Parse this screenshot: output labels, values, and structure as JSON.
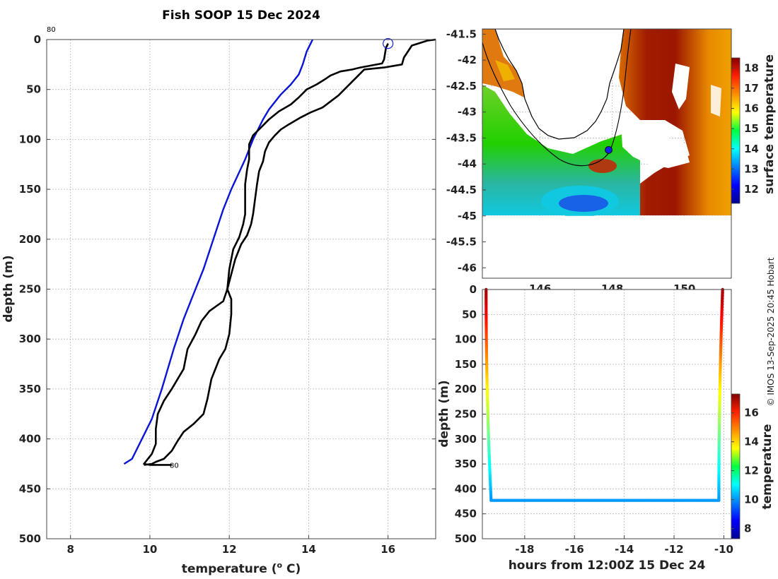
{
  "title": "Fish SOOP 15 Dec 2024",
  "credit": "© IMOS 13-Sep-2025 20:45 Hobart",
  "chart_data": [
    {
      "type": "line",
      "name": "profile",
      "xlabel_prefix": "temperature (",
      "xlabel_sup": "o",
      "xlabel_suffix": " C)",
      "ylabel": "depth (m)",
      "xlim": [
        7.4,
        17.2
      ],
      "ylim": [
        500,
        0
      ],
      "xticks": [
        8,
        10,
        12,
        14,
        16
      ],
      "yticks": [
        0,
        50,
        100,
        150,
        200,
        250,
        300,
        350,
        400,
        450,
        500
      ],
      "label_top": "80",
      "label_bottom": "80",
      "label_bottom_pos": [
        10.5,
        426
      ],
      "marker_circle": [
        16.0,
        4
      ],
      "series": [
        {
          "name": "climatology",
          "color": "#0a14d6",
          "points": [
            [
              14.1,
              0
            ],
            [
              14.0,
              8
            ],
            [
              13.95,
              12
            ],
            [
              13.85,
              25
            ],
            [
              13.75,
              35
            ],
            [
              13.55,
              45
            ],
            [
              13.3,
              55
            ],
            [
              13.0,
              70
            ],
            [
              12.85,
              80
            ],
            [
              12.6,
              100
            ],
            [
              12.4,
              120
            ],
            [
              12.05,
              150
            ],
            [
              11.85,
              170
            ],
            [
              11.6,
              200
            ],
            [
              11.35,
              230
            ],
            [
              11.05,
              260
            ],
            [
              10.85,
              280
            ],
            [
              10.6,
              310
            ],
            [
              10.3,
              350
            ],
            [
              10.05,
              380
            ],
            [
              9.8,
              400
            ],
            [
              9.55,
              420
            ],
            [
              9.35,
              425
            ]
          ]
        },
        {
          "name": "profile-1",
          "color": "#000000",
          "points": [
            [
              16.0,
              4
            ],
            [
              15.95,
              8
            ],
            [
              15.9,
              20
            ],
            [
              15.85,
              24
            ],
            [
              15.3,
              28
            ],
            [
              15.1,
              30
            ],
            [
              14.8,
              32
            ],
            [
              14.55,
              36
            ],
            [
              14.4,
              40
            ],
            [
              14.2,
              45
            ],
            [
              13.95,
              50
            ],
            [
              13.75,
              58
            ],
            [
              13.55,
              65
            ],
            [
              13.25,
              72
            ],
            [
              13.0,
              80
            ],
            [
              12.8,
              88
            ],
            [
              12.6,
              96
            ],
            [
              12.5,
              105
            ],
            [
              12.5,
              120
            ],
            [
              12.45,
              130
            ],
            [
              12.4,
              145
            ],
            [
              12.4,
              160
            ],
            [
              12.4,
              175
            ],
            [
              12.35,
              185
            ],
            [
              12.25,
              198
            ],
            [
              12.1,
              210
            ],
            [
              12.0,
              230
            ],
            [
              11.95,
              250
            ],
            [
              11.85,
              262
            ],
            [
              11.5,
              272
            ],
            [
              11.3,
              282
            ],
            [
              11.15,
              295
            ],
            [
              10.95,
              310
            ],
            [
              10.85,
              330
            ],
            [
              10.55,
              350
            ],
            [
              10.35,
              362
            ],
            [
              10.2,
              375
            ],
            [
              10.15,
              390
            ],
            [
              10.15,
              405
            ],
            [
              10.05,
              415
            ],
            [
              9.95,
              420
            ],
            [
              9.85,
              425
            ],
            [
              10.0,
              426
            ],
            [
              10.3,
              426
            ],
            [
              10.55,
              426
            ]
          ]
        },
        {
          "name": "profile-2",
          "color": "#000000",
          "points": [
            [
              17.2,
              0
            ],
            [
              17.0,
              1
            ],
            [
              16.6,
              6
            ],
            [
              16.4,
              18
            ],
            [
              16.35,
              25
            ],
            [
              15.9,
              28
            ],
            [
              15.4,
              30
            ],
            [
              15.25,
              36
            ],
            [
              15.1,
              42
            ],
            [
              14.95,
              48
            ],
            [
              14.75,
              56
            ],
            [
              14.55,
              62
            ],
            [
              14.35,
              68
            ],
            [
              14.05,
              73
            ],
            [
              13.8,
              78
            ],
            [
              13.5,
              85
            ],
            [
              13.3,
              90
            ],
            [
              13.15,
              96
            ],
            [
              13.0,
              103
            ],
            [
              12.9,
              112
            ],
            [
              12.85,
              122
            ],
            [
              12.75,
              132
            ],
            [
              12.7,
              145
            ],
            [
              12.65,
              160
            ],
            [
              12.6,
              175
            ],
            [
              12.55,
              185
            ],
            [
              12.45,
              196
            ],
            [
              12.3,
              205
            ],
            [
              12.15,
              220
            ],
            [
              12.05,
              235
            ],
            [
              11.95,
              250
            ],
            [
              12.05,
              260
            ],
            [
              12.05,
              275
            ],
            [
              12.0,
              295
            ],
            [
              11.9,
              310
            ],
            [
              11.75,
              320
            ],
            [
              11.65,
              330
            ],
            [
              11.55,
              340
            ],
            [
              11.45,
              360
            ],
            [
              11.35,
              375
            ],
            [
              11.1,
              385
            ],
            [
              10.85,
              393
            ],
            [
              10.7,
              402
            ],
            [
              10.55,
              412
            ],
            [
              10.35,
              420
            ],
            [
              10.15,
              423
            ],
            [
              10.05,
              425
            ],
            [
              9.85,
              426
            ]
          ]
        }
      ]
    },
    {
      "type": "heatmap",
      "name": "sst-map",
      "xlim": [
        144.4,
        151.3
      ],
      "ylim": [
        -46.2,
        -41.4
      ],
      "xticks": [
        146,
        148,
        150
      ],
      "yticks": [
        -41.5,
        -42,
        -42.5,
        -43,
        -43.5,
        -44,
        -44.5,
        -45,
        -45.5,
        -46
      ],
      "ytick_labels": [
        "-41.5",
        "-42",
        "-42.5",
        "-43",
        "-43.5",
        "-44",
        "-44.5",
        "-45",
        "-45.5",
        "-46"
      ],
      "data_lat_min": -45.0,
      "location": [
        147.9,
        -43.73
      ],
      "colorbar_label": "surface temperature",
      "colorbar_range": [
        11.3,
        18.5
      ],
      "colorbar_ticks": [
        12,
        13,
        14,
        15,
        16,
        17,
        18
      ]
    },
    {
      "type": "scatter",
      "name": "depth-time",
      "xlabel": "hours from 12:00Z 15 Dec 24",
      "ylabel": "depth (m)",
      "xlim": [
        -19.7,
        -9.7
      ],
      "ylim": [
        500,
        0
      ],
      "xticks": [
        -18,
        -16,
        -14,
        -12,
        -10
      ],
      "yticks": [
        0,
        50,
        100,
        150,
        200,
        250,
        300,
        350,
        400,
        450,
        500
      ],
      "down_cast": {
        "x_start": -19.55,
        "x_end": -19.35,
        "depth_max": 420
      },
      "bottom": {
        "x_start": -19.35,
        "x_end": -10.2,
        "depth": 423
      },
      "up_cast": {
        "x_start": -10.2,
        "x_end": -10.05,
        "depth_max": 420
      },
      "colorbar_label": "temperature",
      "colorbar_range": [
        7.3,
        17.3
      ],
      "colorbar_ticks": [
        8,
        10,
        12,
        14,
        16
      ]
    }
  ]
}
